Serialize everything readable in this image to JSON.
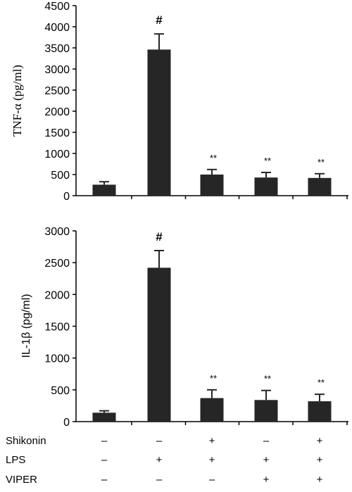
{
  "chart_data": [
    {
      "type": "bar",
      "ylabel": "TNF-α (pg/ml)",
      "ylim": [
        0,
        4500
      ],
      "yticks": [
        "0",
        "500",
        "1000",
        "1500",
        "2000",
        "2500",
        "3000",
        "3500",
        "4000",
        "4500"
      ],
      "groups": 5,
      "values": [
        260,
        3460,
        500,
        430,
        420
      ],
      "errors": [
        70,
        370,
        120,
        120,
        100
      ],
      "significance": [
        "",
        "#",
        "**",
        "**",
        "**"
      ],
      "bar_color": "#262626"
    },
    {
      "type": "bar",
      "ylabel": "IL-1β (pg/ml)",
      "ylim": [
        0,
        3000
      ],
      "yticks": [
        "0",
        "500",
        "1000",
        "1500",
        "2000",
        "2500",
        "3000"
      ],
      "groups": 5,
      "values": [
        140,
        2420,
        370,
        340,
        320
      ],
      "errors": [
        30,
        270,
        130,
        150,
        110
      ],
      "significance": [
        "",
        "#",
        "**",
        "**",
        "**"
      ],
      "bar_color": "#262626"
    }
  ],
  "conditions": [
    {
      "label": "Shikonin",
      "signs": [
        "–",
        "–",
        "+",
        "–",
        "+"
      ]
    },
    {
      "label": "LPS",
      "signs": [
        "–",
        "+",
        "+",
        "+",
        "+"
      ]
    },
    {
      "label": "VIPER",
      "signs": [
        "–",
        "–",
        "–",
        "+",
        "+"
      ]
    }
  ]
}
